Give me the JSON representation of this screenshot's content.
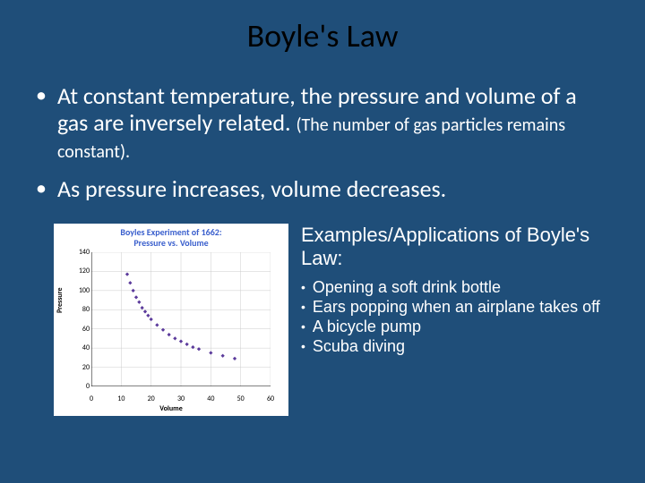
{
  "title": "Boyle's Law",
  "bullets": {
    "b1_main": "At constant temperature, the pressure and volume of a gas are inversely related. ",
    "b1_sub": "(The number of gas particles remains constant).",
    "b2": "As pressure increases, volume decreases."
  },
  "chart": {
    "type": "scatter",
    "title_line1": "Boyles Experiment of 1662:",
    "title_line2": "Pressure vs. Volume",
    "xlabel": "Volume",
    "ylabel": "Pressure",
    "xlim": [
      0,
      60
    ],
    "ylim": [
      0,
      140
    ],
    "xticks": [
      0,
      10,
      20,
      30,
      40,
      50,
      60
    ],
    "yticks": [
      0,
      20,
      40,
      60,
      80,
      100,
      120,
      140
    ],
    "points": [
      [
        12,
        117
      ],
      [
        13,
        108
      ],
      [
        14,
        100
      ],
      [
        15,
        93
      ],
      [
        16,
        88
      ],
      [
        17,
        82
      ],
      [
        18,
        78
      ],
      [
        19,
        74
      ],
      [
        20,
        70
      ],
      [
        22,
        64
      ],
      [
        24,
        59
      ],
      [
        26,
        54
      ],
      [
        28,
        50
      ],
      [
        30,
        47
      ],
      [
        32,
        44
      ],
      [
        34,
        41
      ],
      [
        36,
        39
      ],
      [
        40,
        35
      ],
      [
        44,
        32
      ],
      [
        48,
        29
      ]
    ],
    "point_color": "#5b3a9b",
    "point_size": 3,
    "axis_color": "#000000",
    "grid_color": "#cccccc",
    "background_color": "#ffffff"
  },
  "examples": {
    "heading": "Examples/Applications of Boyle's Law:",
    "items": [
      "Opening a  soft drink bottle",
      "Ears popping when an airplane takes off",
      "A bicycle pump",
      "Scuba diving"
    ]
  },
  "colors": {
    "slide_bg": "#1f4e79",
    "title_text": "#000000",
    "body_text": "#ffffff"
  }
}
